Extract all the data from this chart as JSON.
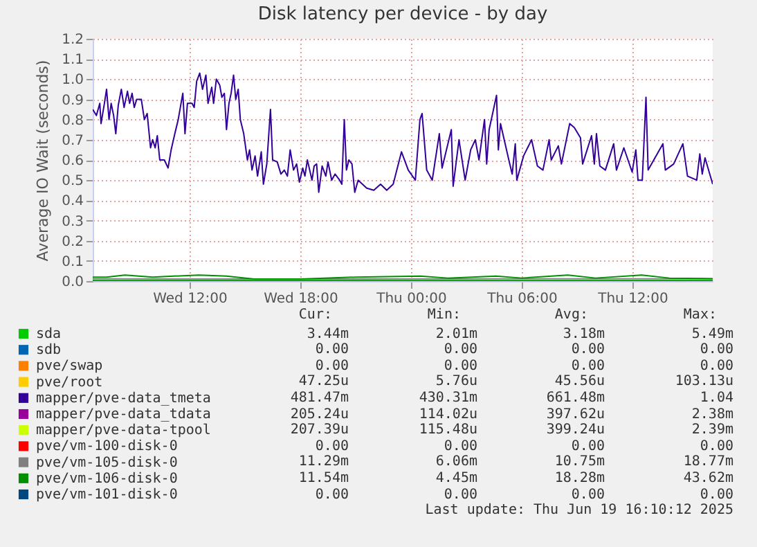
{
  "chart_data": {
    "type": "line",
    "title": "Disk latency per device - by day",
    "ylabel": "Average IO Wait (seconds)",
    "xlim": [
      "2025-06-18T06:45",
      "2025-06-19T16:21"
    ],
    "xticks": [
      {
        "value": "2025-06-18T12:00",
        "label": "Wed 12:00"
      },
      {
        "value": "2025-06-18T18:00",
        "label": "Wed 18:00"
      },
      {
        "value": "2025-06-19T00:00",
        "label": "Thu 00:00"
      },
      {
        "value": "2025-06-19T06:00",
        "label": "Thu 06:00"
      },
      {
        "value": "2025-06-19T12:00",
        "label": "Thu 12:00"
      }
    ],
    "ylim": [
      0,
      1.2
    ],
    "yticks": [
      {
        "value": 0,
        "label": "0.0"
      },
      {
        "value": 0.1,
        "label": "0.1"
      },
      {
        "value": 0.2,
        "label": "0.2"
      },
      {
        "value": 0.3,
        "label": "0.3"
      },
      {
        "value": 0.4,
        "label": "0.4"
      },
      {
        "value": 0.5,
        "label": "0.5"
      },
      {
        "value": 0.6,
        "label": "0.6"
      },
      {
        "value": 0.7,
        "label": "0.7"
      },
      {
        "value": 0.8,
        "label": "0.8"
      },
      {
        "value": 0.9,
        "label": "0.9"
      },
      {
        "value": 1,
        "label": "1.0"
      },
      {
        "value": 1.1,
        "label": "1.1"
      },
      {
        "value": 1.2,
        "label": "1.2"
      }
    ],
    "grid": true,
    "legend": "bottom left",
    "marker": "none",
    "line_style": "solid",
    "series": [
      {
        "name": "sda",
        "color": "#00cc00",
        "x": [
          "2025-06-18T06:45",
          "2025-06-18T12:00",
          "2025-06-18T18:00",
          "2025-06-19T00:00",
          "2025-06-19T06:00",
          "2025-06-19T12:00",
          "2025-06-19T16:21"
        ],
        "values": [
          0.003,
          0.003,
          0.003,
          0.003,
          0.003,
          0.003,
          0.003
        ]
      },
      {
        "name": "sdb",
        "color": "#0066b3"
      },
      {
        "name": "pve/swap",
        "color": "#ff8000"
      },
      {
        "name": "pve/root",
        "color": "#ffcc00"
      },
      {
        "name": "mapper/pve-data_tmeta",
        "color": "#330099",
        "x": [
          "2025-06-18T06:45",
          "2025-06-18T06:57",
          "2025-06-18T07:08",
          "2025-06-18T07:12",
          "2025-06-18T07:23",
          "2025-06-18T07:30",
          "2025-06-18T07:38",
          "2025-06-18T07:45",
          "2025-06-18T07:53",
          "2025-06-18T08:00",
          "2025-06-18T08:08",
          "2025-06-18T08:18",
          "2025-06-18T08:27",
          "2025-06-18T08:38",
          "2025-06-18T08:45",
          "2025-06-18T08:53",
          "2025-06-18T09:00",
          "2025-06-18T09:08",
          "2025-06-18T09:23",
          "2025-06-18T09:33",
          "2025-06-18T09:42",
          "2025-06-18T09:53",
          "2025-06-18T10:00",
          "2025-06-18T10:08",
          "2025-06-18T10:15",
          "2025-06-18T10:23",
          "2025-06-18T10:38",
          "2025-06-18T10:50",
          "2025-06-18T11:00",
          "2025-06-18T11:12",
          "2025-06-18T11:23",
          "2025-06-18T11:38",
          "2025-06-18T11:45",
          "2025-06-18T11:53",
          "2025-06-18T12:08",
          "2025-06-18T12:15",
          "2025-06-18T12:23",
          "2025-06-18T12:33",
          "2025-06-18T12:42",
          "2025-06-18T12:53",
          "2025-06-18T13:00",
          "2025-06-18T13:12",
          "2025-06-18T13:18",
          "2025-06-18T13:27",
          "2025-06-18T13:38",
          "2025-06-18T13:45",
          "2025-06-18T13:53",
          "2025-06-18T14:00",
          "2025-06-18T14:08",
          "2025-06-18T14:15",
          "2025-06-18T14:23",
          "2025-06-18T14:30",
          "2025-06-18T14:38",
          "2025-06-18T14:45",
          "2025-06-18T14:56",
          "2025-06-18T15:08",
          "2025-06-18T15:15",
          "2025-06-18T15:23",
          "2025-06-18T15:33",
          "2025-06-18T15:41",
          "2025-06-18T15:53",
          "2025-06-18T16:00",
          "2025-06-18T16:11",
          "2025-06-18T16:23",
          "2025-06-18T16:30",
          "2025-06-18T16:45",
          "2025-06-18T16:57",
          "2025-06-18T17:08",
          "2025-06-18T17:18",
          "2025-06-18T17:27",
          "2025-06-18T17:38",
          "2025-06-18T17:48",
          "2025-06-18T17:57",
          "2025-06-18T18:08",
          "2025-06-18T18:15",
          "2025-06-18T18:23",
          "2025-06-18T18:38",
          "2025-06-18T18:45",
          "2025-06-18T18:53",
          "2025-06-18T19:00",
          "2025-06-18T19:11",
          "2025-06-18T19:23",
          "2025-06-18T19:30",
          "2025-06-18T19:42",
          "2025-06-18T19:53",
          "2025-06-18T20:08",
          "2025-06-18T20:15",
          "2025-06-18T20:23",
          "2025-06-18T20:30",
          "2025-06-18T20:38",
          "2025-06-18T20:48",
          "2025-06-18T20:57",
          "2025-06-18T21:08",
          "2025-06-18T21:36",
          "2025-06-18T21:59",
          "2025-06-18T22:21",
          "2025-06-18T22:41",
          "2025-06-18T23:02",
          "2025-06-18T23:29",
          "2025-06-18T23:51",
          "2025-06-19T00:14",
          "2025-06-19T00:29",
          "2025-06-19T00:36",
          "2025-06-19T00:51",
          "2025-06-19T01:09",
          "2025-06-19T01:32",
          "2025-06-19T01:41",
          "2025-06-19T02:11",
          "2025-06-19T02:17",
          "2025-06-19T02:36",
          "2025-06-19T02:56",
          "2025-06-19T03:14",
          "2025-06-19T03:29",
          "2025-06-19T03:41",
          "2025-06-19T03:59",
          "2025-06-19T04:06",
          "2025-06-19T04:14",
          "2025-06-19T04:38",
          "2025-06-19T04:44",
          "2025-06-19T04:51",
          "2025-06-19T05:18",
          "2025-06-19T05:29",
          "2025-06-19T05:39",
          "2025-06-19T05:44",
          "2025-06-19T06:06",
          "2025-06-19T06:32",
          "2025-06-19T06:51",
          "2025-06-19T07:09",
          "2025-06-19T07:29",
          "2025-06-19T07:36",
          "2025-06-19T07:59",
          "2025-06-19T08:09",
          "2025-06-19T08:36",
          "2025-06-19T08:51",
          "2025-06-19T09:11",
          "2025-06-19T09:18",
          "2025-06-19T09:47",
          "2025-06-19T09:56",
          "2025-06-19T10:03",
          "2025-06-19T10:14",
          "2025-06-19T10:32",
          "2025-06-19T10:59",
          "2025-06-19T11:08",
          "2025-06-19T11:32",
          "2025-06-19T11:59",
          "2025-06-19T12:11",
          "2025-06-19T12:18",
          "2025-06-19T12:32",
          "2025-06-19T12:44",
          "2025-06-19T12:51",
          "2025-06-19T13:39",
          "2025-06-19T13:47",
          "2025-06-19T14:14",
          "2025-06-19T14:44",
          "2025-06-19T14:59",
          "2025-06-19T15:29",
          "2025-06-19T15:39",
          "2025-06-19T15:47",
          "2025-06-19T15:56",
          "2025-06-19T16:21"
        ],
        "values": [
          0.85,
          0.82,
          0.88,
          0.78,
          0.88,
          0.95,
          0.8,
          0.88,
          0.82,
          0.73,
          0.87,
          0.95,
          0.86,
          0.94,
          0.88,
          0.93,
          0.86,
          0.9,
          0.9,
          0.8,
          0.83,
          0.66,
          0.7,
          0.66,
          0.72,
          0.6,
          0.6,
          0.56,
          0.65,
          0.73,
          0.8,
          0.93,
          0.73,
          0.88,
          0.88,
          0.86,
          0.99,
          1.03,
          0.95,
          1.02,
          0.88,
          0.96,
          0.88,
          1.0,
          0.97,
          0.91,
          0.93,
          0.75,
          0.88,
          0.93,
          1.02,
          0.9,
          0.95,
          0.8,
          0.73,
          0.6,
          0.65,
          0.55,
          0.62,
          0.52,
          0.64,
          0.48,
          0.58,
          0.85,
          0.6,
          0.59,
          0.53,
          0.55,
          0.52,
          0.65,
          0.55,
          0.58,
          0.49,
          0.56,
          0.52,
          0.6,
          0.5,
          0.57,
          0.58,
          0.44,
          0.57,
          0.52,
          0.59,
          0.5,
          0.53,
          0.5,
          0.48,
          0.8,
          0.55,
          0.6,
          0.58,
          0.44,
          0.5,
          0.46,
          0.45,
          0.48,
          0.45,
          0.48,
          0.64,
          0.55,
          0.5,
          0.8,
          0.83,
          0.55,
          0.5,
          0.73,
          0.56,
          0.75,
          0.47,
          0.7,
          0.5,
          0.65,
          0.7,
          0.6,
          0.8,
          0.58,
          0.75,
          0.92,
          0.65,
          0.78,
          0.6,
          0.53,
          0.68,
          0.5,
          0.62,
          0.7,
          0.57,
          0.55,
          0.7,
          0.6,
          0.67,
          0.58,
          0.78,
          0.76,
          0.71,
          0.58,
          0.72,
          0.58,
          0.73,
          0.57,
          0.55,
          0.68,
          0.55,
          0.66,
          0.54,
          0.65,
          0.5,
          0.5,
          0.91,
          0.55,
          0.68,
          0.55,
          0.58,
          0.68,
          0.52,
          0.5,
          0.63,
          0.53,
          0.61,
          0.48
        ]
      },
      {
        "name": "mapper/pve-data_tdata",
        "color": "#990099"
      },
      {
        "name": "mapper/pve-data-tpool",
        "color": "#ccff00"
      },
      {
        "name": "pve/vm-100-disk-0",
        "color": "#ff0000"
      },
      {
        "name": "pve/vm-105-disk-0",
        "color": "#808080",
        "x": [
          "2025-06-18T06:45",
          "2025-06-18T18:00",
          "2025-06-19T06:00",
          "2025-06-19T16:21"
        ],
        "values": [
          0.011,
          0.01,
          0.011,
          0.011
        ]
      },
      {
        "name": "pve/vm-106-disk-0",
        "color": "#008f00",
        "x": [
          "2025-06-18T06:45",
          "2025-06-18T07:30",
          "2025-06-18T08:30",
          "2025-06-18T10:00",
          "2025-06-18T12:30",
          "2025-06-18T14:00",
          "2025-06-18T15:30",
          "2025-06-18T18:00",
          "2025-06-18T21:00",
          "2025-06-19T00:30",
          "2025-06-19T02:00",
          "2025-06-19T04:36",
          "2025-06-19T06:00",
          "2025-06-19T08:30",
          "2025-06-19T10:00",
          "2025-06-19T12:30",
          "2025-06-19T14:00",
          "2025-06-19T16:21"
        ],
        "values": [
          0.02,
          0.02,
          0.03,
          0.02,
          0.03,
          0.025,
          0.01,
          0.01,
          0.02,
          0.025,
          0.015,
          0.025,
          0.015,
          0.03,
          0.015,
          0.03,
          0.015,
          0.012
        ]
      },
      {
        "name": "pve/vm-101-disk-0",
        "color": "#00487d",
        "x": [
          "2025-06-18T06:45",
          "2025-06-19T16:21"
        ],
        "values": [
          0,
          0
        ]
      }
    ],
    "annotations": [
      "Cur:",
      "Min:",
      "Avg:",
      "Max:",
      "3.44m",
      "2.01m",
      "3.18m",
      "5.49m",
      "0.00",
      "0.00",
      "0.00",
      "0.00",
      "0.00",
      "0.00",
      "0.00",
      "0.00",
      "47.25u",
      "5.76u",
      "45.56u",
      "103.13u",
      "481.47m",
      "430.31m",
      "661.48m",
      "1.04",
      "205.24u",
      "114.02u",
      "397.62u",
      "2.38m",
      "207.39u",
      "115.48u",
      "399.24u",
      "2.39m",
      "0.00",
      "0.00",
      "0.00",
      "0.00",
      "11.29m",
      "6.06m",
      "10.75m",
      "18.77m",
      "11.54m",
      "4.45m",
      "18.28m",
      "43.62m",
      "0.00",
      "0.00",
      "0.00",
      "0.00",
      "Last update: Thu Jun 19 16:10:12 2025"
    ]
  }
}
